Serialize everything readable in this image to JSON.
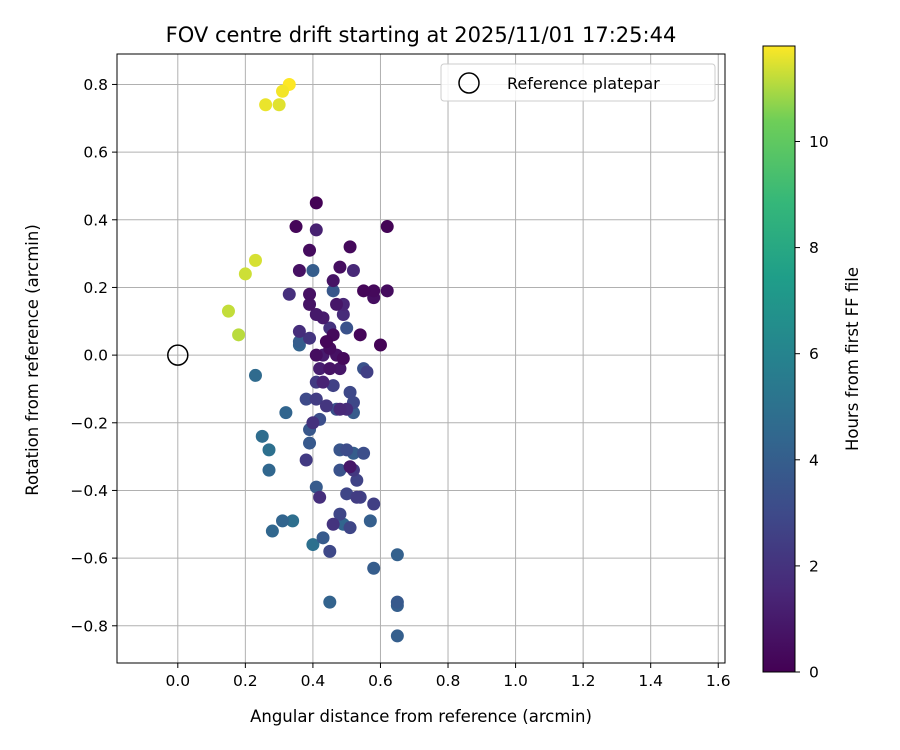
{
  "chart_data": {
    "type": "scatter",
    "title": "FOV centre drift starting at 2025/11/01 17:25:44",
    "xlabel": "Angular distance from reference (arcmin)",
    "ylabel": "Rotation from reference (arcmin)",
    "xlim": [
      -0.18,
      1.62
    ],
    "ylim": [
      -0.91,
      0.89
    ],
    "xticks": [
      0.0,
      0.2,
      0.4,
      0.6,
      0.8,
      1.0,
      1.2,
      1.4,
      1.6
    ],
    "xtick_labels": [
      "0.0",
      "0.2",
      "0.4",
      "0.6",
      "0.8",
      "1.0",
      "1.2",
      "1.4",
      "1.6"
    ],
    "yticks": [
      0.8,
      0.6,
      0.4,
      0.2,
      0.0,
      -0.2,
      -0.4,
      -0.6,
      -0.8
    ],
    "ytick_labels": [
      "0.8",
      "0.6",
      "0.4",
      "0.2",
      "0.0",
      "−0.2",
      "−0.4",
      "−0.6",
      "−0.8"
    ],
    "grid": true,
    "legend": {
      "position": "top-right",
      "entries": [
        "Reference platepar"
      ]
    },
    "reference_point": {
      "x": 0.0,
      "y": 0.0,
      "label": "Reference platepar"
    },
    "colorbar": {
      "label": "Hours from first FF file",
      "colormap": "viridis",
      "range": [
        0,
        11.8
      ],
      "ticks": [
        0,
        2,
        4,
        6,
        8,
        10
      ],
      "tick_labels": [
        "0",
        "2",
        "4",
        "6",
        "8",
        "10"
      ]
    },
    "points": [
      {
        "x": 0.33,
        "y": 0.8,
        "h": 11.8
      },
      {
        "x": 0.31,
        "y": 0.78,
        "h": 11.7
      },
      {
        "x": 0.26,
        "y": 0.74,
        "h": 11.6
      },
      {
        "x": 0.3,
        "y": 0.74,
        "h": 11.5
      },
      {
        "x": 0.23,
        "y": 0.28,
        "h": 11.4
      },
      {
        "x": 0.2,
        "y": 0.24,
        "h": 11.3
      },
      {
        "x": 0.15,
        "y": 0.13,
        "h": 11.2
      },
      {
        "x": 0.18,
        "y": 0.06,
        "h": 11.1
      },
      {
        "x": 0.41,
        "y": 0.45,
        "h": 0.05
      },
      {
        "x": 0.62,
        "y": 0.38,
        "h": 0.1
      },
      {
        "x": 0.35,
        "y": 0.38,
        "h": 0.2
      },
      {
        "x": 0.51,
        "y": 0.32,
        "h": 0.3
      },
      {
        "x": 0.39,
        "y": 0.31,
        "h": 0.4
      },
      {
        "x": 0.41,
        "y": 0.37,
        "h": 1.2
      },
      {
        "x": 0.48,
        "y": 0.26,
        "h": 0.5
      },
      {
        "x": 0.36,
        "y": 0.25,
        "h": 0.6
      },
      {
        "x": 0.46,
        "y": 0.22,
        "h": 0.7
      },
      {
        "x": 0.52,
        "y": 0.25,
        "h": 1.5
      },
      {
        "x": 0.55,
        "y": 0.19,
        "h": 0.2
      },
      {
        "x": 0.58,
        "y": 0.19,
        "h": 0.3
      },
      {
        "x": 0.62,
        "y": 0.19,
        "h": 0.4
      },
      {
        "x": 0.58,
        "y": 0.17,
        "h": 0.5
      },
      {
        "x": 0.39,
        "y": 0.18,
        "h": 0.6
      },
      {
        "x": 0.33,
        "y": 0.18,
        "h": 1.8
      },
      {
        "x": 0.39,
        "y": 0.15,
        "h": 0.7
      },
      {
        "x": 0.47,
        "y": 0.15,
        "h": 0.8
      },
      {
        "x": 0.49,
        "y": 0.15,
        "h": 1.4
      },
      {
        "x": 0.41,
        "y": 0.12,
        "h": 0.9
      },
      {
        "x": 0.43,
        "y": 0.11,
        "h": 1.0
      },
      {
        "x": 0.49,
        "y": 0.12,
        "h": 1.6
      },
      {
        "x": 0.46,
        "y": 0.19,
        "h": 3.6
      },
      {
        "x": 0.4,
        "y": 0.25,
        "h": 3.9
      },
      {
        "x": 0.45,
        "y": 0.08,
        "h": 1.9
      },
      {
        "x": 0.5,
        "y": 0.08,
        "h": 3.4
      },
      {
        "x": 0.36,
        "y": 0.07,
        "h": 1.7
      },
      {
        "x": 0.39,
        "y": 0.05,
        "h": 2.0
      },
      {
        "x": 0.36,
        "y": 0.04,
        "h": 3.9
      },
      {
        "x": 0.36,
        "y": 0.03,
        "h": 4.2
      },
      {
        "x": 0.44,
        "y": 0.04,
        "h": 0.2
      },
      {
        "x": 0.45,
        "y": 0.02,
        "h": 0.4
      },
      {
        "x": 0.46,
        "y": 0.06,
        "h": 0.3
      },
      {
        "x": 0.54,
        "y": 0.06,
        "h": 0.2
      },
      {
        "x": 0.6,
        "y": 0.03,
        "h": 0.1
      },
      {
        "x": 0.41,
        "y": 0.0,
        "h": 0.5
      },
      {
        "x": 0.43,
        "y": 0.0,
        "h": 1.0
      },
      {
        "x": 0.47,
        "y": 0.0,
        "h": 0.6
      },
      {
        "x": 0.49,
        "y": -0.01,
        "h": 0.3
      },
      {
        "x": 0.42,
        "y": -0.04,
        "h": 1.1
      },
      {
        "x": 0.45,
        "y": -0.04,
        "h": 0.7
      },
      {
        "x": 0.48,
        "y": -0.04,
        "h": 0.8
      },
      {
        "x": 0.55,
        "y": -0.04,
        "h": 3.4
      },
      {
        "x": 0.56,
        "y": -0.05,
        "h": 2.5
      },
      {
        "x": 0.41,
        "y": -0.08,
        "h": 2.3
      },
      {
        "x": 0.43,
        "y": -0.08,
        "h": 1.3
      },
      {
        "x": 0.46,
        "y": -0.09,
        "h": 2.6
      },
      {
        "x": 0.51,
        "y": -0.11,
        "h": 2.9
      },
      {
        "x": 0.38,
        "y": -0.13,
        "h": 3.0
      },
      {
        "x": 0.41,
        "y": -0.13,
        "h": 2.4
      },
      {
        "x": 0.44,
        "y": -0.15,
        "h": 2.1
      },
      {
        "x": 0.47,
        "y": -0.16,
        "h": 3.3
      },
      {
        "x": 0.48,
        "y": -0.16,
        "h": 1.5
      },
      {
        "x": 0.5,
        "y": -0.16,
        "h": 1.7
      },
      {
        "x": 0.52,
        "y": -0.14,
        "h": 2.9
      },
      {
        "x": 0.52,
        "y": -0.17,
        "h": 3.8
      },
      {
        "x": 0.42,
        "y": -0.19,
        "h": 3.2
      },
      {
        "x": 0.4,
        "y": -0.2,
        "h": 1.9
      },
      {
        "x": 0.39,
        "y": -0.22,
        "h": 3.6
      },
      {
        "x": 0.39,
        "y": -0.26,
        "h": 3.7
      },
      {
        "x": 0.48,
        "y": -0.28,
        "h": 3.5
      },
      {
        "x": 0.5,
        "y": -0.28,
        "h": 3.1
      },
      {
        "x": 0.52,
        "y": -0.29,
        "h": 3.9
      },
      {
        "x": 0.55,
        "y": -0.29,
        "h": 3.2
      },
      {
        "x": 0.38,
        "y": -0.31,
        "h": 2.3
      },
      {
        "x": 0.51,
        "y": -0.33,
        "h": 0.8
      },
      {
        "x": 0.48,
        "y": -0.34,
        "h": 3.4
      },
      {
        "x": 0.52,
        "y": -0.34,
        "h": 2.2
      },
      {
        "x": 0.41,
        "y": -0.39,
        "h": 3.8
      },
      {
        "x": 0.42,
        "y": -0.42,
        "h": 1.8
      },
      {
        "x": 0.53,
        "y": -0.37,
        "h": 2.7
      },
      {
        "x": 0.5,
        "y": -0.41,
        "h": 2.8
      },
      {
        "x": 0.53,
        "y": -0.42,
        "h": 2.4
      },
      {
        "x": 0.54,
        "y": -0.42,
        "h": 2.6
      },
      {
        "x": 0.58,
        "y": -0.44,
        "h": 2.5
      },
      {
        "x": 0.48,
        "y": -0.47,
        "h": 2.8
      },
      {
        "x": 0.46,
        "y": -0.5,
        "h": 2.0
      },
      {
        "x": 0.49,
        "y": -0.5,
        "h": 4.3
      },
      {
        "x": 0.51,
        "y": -0.51,
        "h": 2.8
      },
      {
        "x": 0.57,
        "y": -0.49,
        "h": 4.0
      },
      {
        "x": 0.31,
        "y": -0.49,
        "h": 4.3
      },
      {
        "x": 0.34,
        "y": -0.49,
        "h": 4.8
      },
      {
        "x": 0.28,
        "y": -0.52,
        "h": 4.4
      },
      {
        "x": 0.43,
        "y": -0.54,
        "h": 3.8
      },
      {
        "x": 0.4,
        "y": -0.56,
        "h": 4.9
      },
      {
        "x": 0.45,
        "y": -0.58,
        "h": 2.9
      },
      {
        "x": 0.23,
        "y": -0.06,
        "h": 4.6
      },
      {
        "x": 0.32,
        "y": -0.17,
        "h": 4.3
      },
      {
        "x": 0.25,
        "y": -0.24,
        "h": 4.7
      },
      {
        "x": 0.27,
        "y": -0.28,
        "h": 4.9
      },
      {
        "x": 0.27,
        "y": -0.34,
        "h": 4.4
      },
      {
        "x": 0.65,
        "y": -0.59,
        "h": 4.1
      },
      {
        "x": 0.58,
        "y": -0.63,
        "h": 3.9
      },
      {
        "x": 0.65,
        "y": -0.73,
        "h": 3.7
      },
      {
        "x": 0.65,
        "y": -0.74,
        "h": 4.0
      },
      {
        "x": 0.45,
        "y": -0.73,
        "h": 4.2
      },
      {
        "x": 0.65,
        "y": -0.83,
        "h": 4.0
      }
    ]
  }
}
